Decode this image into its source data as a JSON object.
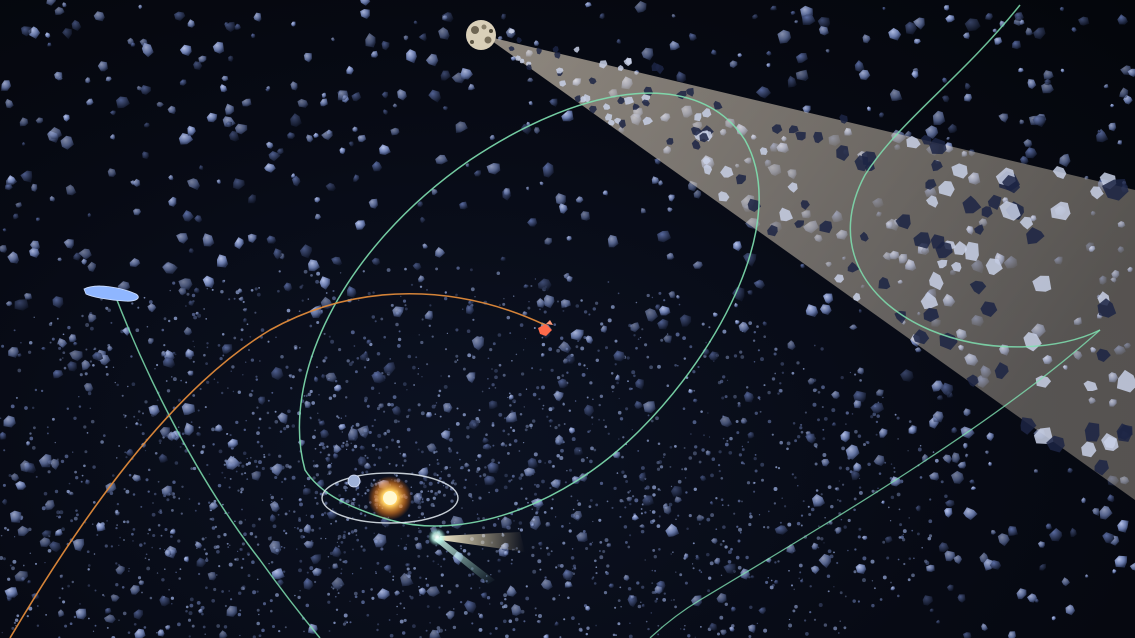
{
  "scene": {
    "description_label": "",
    "colors": {
      "space": "#05070d",
      "asteroid": "#8ea0cf",
      "asteroid_dark": "#2b3552",
      "orbit_green": "#7fe0b0",
      "orbit_orange": "#e08a3a",
      "orbit_white": "#e6eef5",
      "sun_core": "#fff4c0",
      "sun_glow": "#ff9a2a",
      "comet": "#e8fff8",
      "comet_tail": "#fff1c8",
      "beam": "#fff0d8",
      "mars_like": "#ff6a4a",
      "ice_body": "#8fb6ff"
    },
    "objects": [
      {
        "name": "sun",
        "icon": "sun-icon"
      },
      {
        "name": "inner-planet",
        "icon": "planet-icon"
      },
      {
        "name": "comet",
        "icon": "comet-icon"
      },
      {
        "name": "mars-probe",
        "icon": "probe-icon"
      },
      {
        "name": "ice-asteroid",
        "icon": "asteroid-icon"
      },
      {
        "name": "cratered-moon",
        "icon": "moon-icon"
      }
    ]
  }
}
